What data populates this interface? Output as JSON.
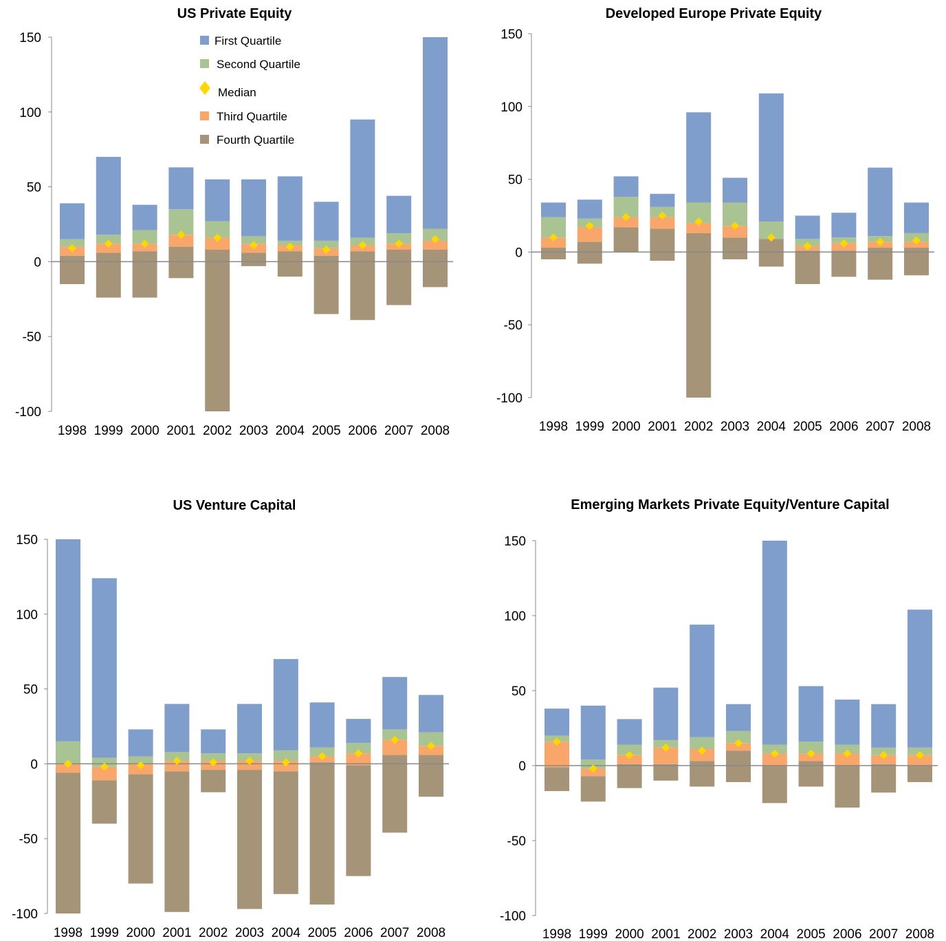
{
  "colors": {
    "first_quartile": "#7f9ecc",
    "second_quartile": "#a9c393",
    "median": "#ffd700",
    "third_quartile": "#f8a66a",
    "fourth_quartile": "#a69479",
    "axis": "#888888"
  },
  "legend": {
    "first": "First Quartile",
    "second": "Second Quartile",
    "median": "Median",
    "third": "Third Quartile",
    "fourth": "Fourth Quartile"
  },
  "chart_data": [
    {
      "type": "bar",
      "title": "US Private Equity",
      "categories": [
        "1998",
        "1999",
        "2000",
        "2001",
        "2002",
        "2003",
        "2004",
        "2005",
        "2006",
        "2007",
        "2008"
      ],
      "ylim": [
        -100,
        150
      ],
      "yticks": [
        "150",
        "100",
        "50",
        "0",
        "-50",
        "-100"
      ],
      "grid": false,
      "legend_position": "top-center",
      "series": [
        {
          "name": "Fourth Quartile",
          "lows": [
            -15,
            -24,
            -24,
            -11,
            -100,
            -3,
            -10,
            -35,
            -39,
            -29,
            -17
          ],
          "highs": [
            4,
            6,
            7,
            10,
            8,
            6,
            7,
            4,
            7,
            8,
            8
          ]
        },
        {
          "name": "Third Quartile",
          "lows": [
            4,
            6,
            7,
            10,
            8,
            6,
            7,
            4,
            7,
            8,
            8
          ],
          "highs": [
            10,
            12,
            12,
            18,
            16,
            12,
            11,
            9,
            11,
            12,
            14
          ]
        },
        {
          "name": "Second Quartile",
          "lows": [
            10,
            12,
            12,
            18,
            16,
            12,
            11,
            9,
            11,
            12,
            14
          ],
          "highs": [
            15,
            18,
            21,
            35,
            27,
            17,
            14,
            14,
            16,
            19,
            22
          ]
        },
        {
          "name": "First Quartile",
          "lows": [
            15,
            18,
            21,
            35,
            27,
            17,
            14,
            14,
            16,
            19,
            22
          ],
          "highs": [
            39,
            70,
            38,
            63,
            55,
            55,
            57,
            40,
            95,
            44,
            150
          ]
        }
      ],
      "median": [
        9,
        12,
        12,
        18,
        16,
        11,
        10,
        8,
        11,
        12,
        15
      ]
    },
    {
      "type": "bar",
      "title": "Developed Europe Private Equity",
      "categories": [
        "1998",
        "1999",
        "2000",
        "2001",
        "2002",
        "2003",
        "2004",
        "2005",
        "2006",
        "2007",
        "2008"
      ],
      "ylim": [
        -100,
        150
      ],
      "yticks": [
        "150",
        "100",
        "50",
        "0",
        "-50",
        "-100"
      ],
      "grid": false,
      "series": [
        {
          "name": "Fourth Quartile",
          "lows": [
            -5,
            -8,
            0,
            -6,
            -100,
            -5,
            -10,
            -22,
            -17,
            -19,
            -16
          ],
          "highs": [
            3,
            7,
            17,
            16,
            13,
            10,
            9,
            1,
            1,
            3,
            3
          ]
        },
        {
          "name": "Third Quartile",
          "lows": [
            3,
            7,
            17,
            16,
            13,
            10,
            9,
            1,
            1,
            3,
            3
          ],
          "highs": [
            10,
            17,
            24,
            24,
            20,
            18,
            9,
            4,
            6,
            7,
            7
          ]
        },
        {
          "name": "Second Quartile",
          "lows": [
            10,
            17,
            24,
            24,
            20,
            18,
            9,
            4,
            6,
            7,
            7
          ],
          "highs": [
            24,
            23,
            38,
            31,
            34,
            34,
            21,
            9,
            10,
            11,
            13
          ]
        },
        {
          "name": "First Quartile",
          "lows": [
            24,
            23,
            38,
            31,
            34,
            34,
            21,
            9,
            10,
            11,
            13
          ],
          "highs": [
            34,
            36,
            52,
            40,
            96,
            51,
            109,
            25,
            27,
            58,
            34
          ]
        }
      ],
      "median": [
        10,
        18,
        24,
        25,
        21,
        18,
        10,
        4,
        6,
        7,
        8
      ]
    },
    {
      "type": "bar",
      "title": "US Venture Capital",
      "categories": [
        "1998",
        "1999",
        "2000",
        "2001",
        "2002",
        "2003",
        "2004",
        "2005",
        "2006",
        "2007",
        "2008"
      ],
      "ylim": [
        -100,
        150
      ],
      "yticks": [
        "150",
        "100",
        "50",
        "0",
        "-50",
        "-100"
      ],
      "grid": false,
      "series": [
        {
          "name": "Fourth Quartile",
          "lows": [
            -100,
            -40,
            -80,
            -99,
            -19,
            -97,
            -87,
            -94,
            -75,
            -46,
            -22
          ],
          "highs": [
            -6,
            -11,
            -7,
            -5,
            -4,
            -4,
            -5,
            1,
            -1,
            6,
            6
          ]
        },
        {
          "name": "Third Quartile",
          "lows": [
            -6,
            -11,
            -7,
            -5,
            -4,
            -4,
            -5,
            1,
            -1,
            6,
            6
          ],
          "highs": [
            0,
            -2,
            0,
            2,
            2,
            2,
            2,
            5,
            7,
            16,
            12
          ]
        },
        {
          "name": "Second Quartile",
          "lows": [
            0,
            -2,
            0,
            2,
            2,
            2,
            2,
            5,
            7,
            16,
            12
          ],
          "highs": [
            15,
            4,
            5,
            8,
            7,
            7,
            9,
            11,
            14,
            23,
            21
          ]
        },
        {
          "name": "First Quartile",
          "lows": [
            15,
            4,
            5,
            8,
            7,
            7,
            9,
            11,
            14,
            23,
            21
          ],
          "highs": [
            150,
            124,
            23,
            40,
            23,
            40,
            70,
            41,
            30,
            58,
            46
          ]
        }
      ],
      "median": [
        0,
        -2,
        -1,
        2,
        1,
        2,
        1,
        5,
        7,
        16,
        12
      ]
    },
    {
      "type": "bar",
      "title": "Emerging Markets Private Equity/Venture Capital",
      "categories": [
        "1998",
        "1999",
        "2000",
        "2001",
        "2002",
        "2003",
        "2004",
        "2005",
        "2006",
        "2007",
        "2008"
      ],
      "ylim": [
        -100,
        150
      ],
      "yticks": [
        "150",
        "100",
        "50",
        "0",
        "-50",
        "-100"
      ],
      "grid": false,
      "series": [
        {
          "name": "Fourth Quartile",
          "lows": [
            -17,
            -24,
            -15,
            -10,
            -14,
            -11,
            -25,
            -14,
            -28,
            -18,
            -11
          ],
          "highs": [
            -1,
            -7,
            1,
            1,
            3,
            10,
            0,
            3,
            0,
            1,
            0
          ]
        },
        {
          "name": "Third Quartile",
          "lows": [
            -1,
            -7,
            1,
            1,
            3,
            10,
            0,
            3,
            0,
            1,
            0
          ],
          "highs": [
            16,
            -2,
            7,
            12,
            11,
            15,
            8,
            8,
            8,
            7,
            7
          ]
        },
        {
          "name": "Second Quartile",
          "lows": [
            16,
            -2,
            7,
            12,
            11,
            15,
            8,
            8,
            8,
            7,
            7
          ],
          "highs": [
            20,
            4,
            14,
            17,
            19,
            23,
            14,
            16,
            14,
            12,
            12
          ]
        },
        {
          "name": "First Quartile",
          "lows": [
            20,
            4,
            14,
            17,
            19,
            23,
            14,
            16,
            14,
            12,
            12
          ],
          "highs": [
            38,
            40,
            31,
            52,
            94,
            41,
            150,
            53,
            44,
            41,
            104
          ]
        }
      ],
      "median": [
        16,
        -2,
        7,
        12,
        10,
        15,
        8,
        8,
        8,
        7,
        7
      ]
    }
  ]
}
